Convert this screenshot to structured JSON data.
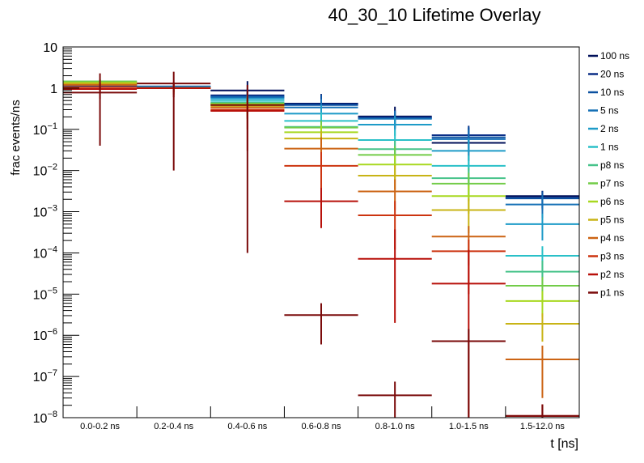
{
  "chart_data": {
    "type": "line",
    "subtype": "histogram-step-with-errorbars",
    "title": "40_30_10 Lifetime Overlay",
    "xlabel": "t [ns]",
    "ylabel": "frac events/ns",
    "yscale": "log",
    "ylim": [
      1e-08,
      10
    ],
    "y_ticks": [
      {
        "base": "10",
        "exp": "",
        "label": "10",
        "value": 10
      },
      {
        "base": "1",
        "exp": "",
        "label": "1",
        "value": 1
      },
      {
        "base": "10",
        "exp": "−1",
        "value": 0.1
      },
      {
        "base": "10",
        "exp": "−2",
        "value": 0.01
      },
      {
        "base": "10",
        "exp": "−3",
        "value": 0.001
      },
      {
        "base": "10",
        "exp": "−4",
        "value": 0.0001
      },
      {
        "base": "10",
        "exp": "−5",
        "value": 1e-05
      },
      {
        "base": "10",
        "exp": "−6",
        "value": 1e-06
      },
      {
        "base": "10",
        "exp": "−7",
        "value": 1e-07
      },
      {
        "base": "10",
        "exp": "−8",
        "value": 1e-08
      }
    ],
    "categories": [
      "0.0-0.2 ns",
      "0.2-0.4 ns",
      "0.4-0.6 ns",
      "0.6-0.8 ns",
      "0.8-1.0 ns",
      "1.0-1.5 ns",
      "1.5-12.0 ns"
    ],
    "legend_position": "right",
    "series": [
      {
        "name": "100 ns",
        "color": "#00105a",
        "values": [
          1.15,
          1.05,
          0.88,
          0.42,
          0.205,
          0.047,
          0.0024
        ],
        "err_lo": [
          0.2,
          0.2,
          0.7,
          0.25,
          0.1,
          0.03,
          0.0012
        ],
        "err_hi": [
          0.2,
          0.2,
          0.6,
          0.3,
          0.15,
          0.06,
          0.0008
        ]
      },
      {
        "name": "20 ns",
        "color": "#0a2e86",
        "values": [
          1.15,
          1.08,
          0.67,
          0.41,
          0.195,
          0.072,
          0.0022
        ],
        "err_lo": [
          0.2,
          0.2,
          0.3,
          0.2,
          0.08,
          0.03,
          0.001
        ],
        "err_hi": [
          0.2,
          0.2,
          0.3,
          0.3,
          0.1,
          0.05,
          0.001
        ]
      },
      {
        "name": "10 ns",
        "color": "#0b50a0",
        "values": [
          1.18,
          1.1,
          0.62,
          0.39,
          0.185,
          0.064,
          0.0021
        ],
        "err_lo": [
          0.2,
          0.2,
          0.3,
          0.2,
          0.08,
          0.03,
          0.001
        ],
        "err_hi": [
          0.2,
          0.2,
          0.3,
          0.3,
          0.1,
          0.05,
          0.001
        ]
      },
      {
        "name": "5 ns",
        "color": "#1670b6",
        "values": [
          1.2,
          1.08,
          0.6,
          0.34,
          0.18,
          0.058,
          0.0015
        ],
        "err_lo": [
          0.2,
          0.2,
          0.2,
          0.2,
          0.08,
          0.03,
          0.0008
        ],
        "err_hi": [
          0.2,
          0.2,
          0.2,
          0.2,
          0.1,
          0.04,
          0.001
        ]
      },
      {
        "name": "2 ns",
        "color": "#1e9bc8",
        "values": [
          1.25,
          1.03,
          0.55,
          0.24,
          0.13,
          0.03,
          0.0005
        ],
        "err_lo": [
          0.2,
          0.2,
          0.2,
          0.15,
          0.06,
          0.02,
          0.0003
        ],
        "err_hi": [
          0.2,
          0.2,
          0.2,
          0.15,
          0.08,
          0.03,
          0.0004
        ]
      },
      {
        "name": "1 ns",
        "color": "#2ac0c8",
        "values": [
          1.4,
          1.0,
          0.49,
          0.16,
          0.055,
          0.013,
          8.5e-05
        ],
        "err_lo": [
          0.2,
          0.2,
          0.2,
          0.1,
          0.03,
          0.008,
          6e-05
        ],
        "err_hi": [
          0.2,
          0.2,
          0.2,
          0.1,
          0.04,
          0.01,
          6e-05
        ]
      },
      {
        "name": "p8 ns",
        "color": "#46c38a",
        "values": [
          1.45,
          1.0,
          0.44,
          0.115,
          0.033,
          0.0065,
          3.5e-05
        ],
        "err_lo": [
          0.2,
          0.2,
          0.2,
          0.05,
          0.02,
          0.004,
          2e-05
        ],
        "err_hi": [
          0.2,
          0.2,
          0.2,
          0.05,
          0.02,
          0.005,
          3e-05
        ]
      },
      {
        "name": "p7 ns",
        "color": "#72cc48",
        "values": [
          1.45,
          1.0,
          0.42,
          0.11,
          0.024,
          0.0048,
          1.6e-05
        ],
        "err_lo": [
          0.2,
          0.2,
          0.2,
          0.05,
          0.01,
          0.003,
          1e-05
        ],
        "err_hi": [
          0.2,
          0.2,
          0.2,
          0.05,
          0.015,
          0.004,
          1e-05
        ]
      },
      {
        "name": "p6 ns",
        "color": "#a8d820",
        "values": [
          1.35,
          1.0,
          0.4,
          0.085,
          0.014,
          0.0024,
          6.8e-06
        ],
        "err_lo": [
          0.2,
          0.2,
          0.2,
          0.04,
          0.008,
          0.0015,
          4e-06
        ],
        "err_hi": [
          0.2,
          0.2,
          0.2,
          0.04,
          0.01,
          0.002,
          5e-06
        ]
      },
      {
        "name": "p5 ns",
        "color": "#c8b416",
        "values": [
          1.3,
          1.0,
          0.37,
          0.06,
          0.0075,
          0.0011,
          1.9e-06
        ],
        "err_lo": [
          0.2,
          0.2,
          0.15,
          0.03,
          0.004,
          0.0008,
          1.2e-06
        ],
        "err_hi": [
          0.2,
          0.2,
          0.15,
          0.03,
          0.006,
          0.001,
          1.5e-06
        ]
      },
      {
        "name": "p4 ns",
        "color": "#cc6414",
        "values": [
          1.2,
          1.0,
          0.34,
          0.034,
          0.0031,
          0.00025,
          2.6e-07
        ],
        "err_lo": [
          0.2,
          0.2,
          0.15,
          0.02,
          0.002,
          0.0002,
          2.3e-07
        ],
        "err_hi": [
          0.2,
          0.2,
          0.15,
          0.03,
          0.003,
          0.0002,
          3e-07
        ]
      },
      {
        "name": "p3 ns",
        "color": "#cc3410",
        "values": [
          1.05,
          1.0,
          0.3,
          0.013,
          0.00082,
          0.00011,
          1.1e-08
        ],
        "err_lo": [
          0.3,
          0.3,
          0.2,
          0.01,
          0.0007,
          0.0001,
          8e-09
        ],
        "err_hi": [
          0.3,
          0.3,
          0.2,
          0.015,
          0.001,
          0.0001,
          1e-08
        ]
      },
      {
        "name": "p2 ns",
        "color": "#b8100a",
        "values": [
          0.95,
          1.0,
          0.28,
          0.0018,
          7.2e-05,
          1.8e-05,
          1.1e-08
        ],
        "err_lo": [
          0.4,
          0.4,
          0.25,
          0.0014,
          7e-05,
          1.8e-05,
          1e-08
        ],
        "err_hi": [
          0.4,
          0.4,
          0.3,
          0.002,
          0.0003,
          0.0001,
          1e-08
        ]
      },
      {
        "name": "p1 ns",
        "color": "#7a0a0a",
        "values": [
          0.78,
          1.3,
          0.39,
          3.1e-06,
          3.5e-08,
          7.2e-07,
          1.1e-08
        ],
        "err_lo": [
          0.74,
          1.29,
          0.3899,
          2.5e-06,
          3.5e-08,
          7.2e-07,
          1e-08
        ],
        "err_hi": [
          1.5,
          1.2,
          0.8,
          2.9e-06,
          4e-08,
          7e-07,
          1e-08
        ]
      }
    ]
  }
}
